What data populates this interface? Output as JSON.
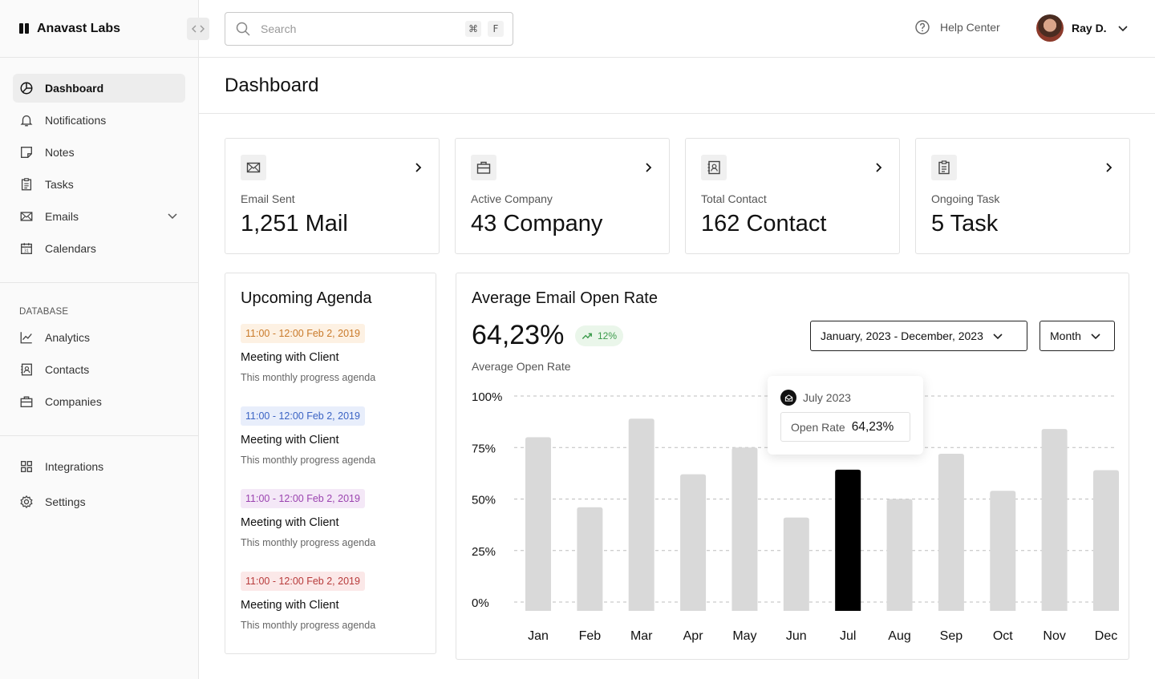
{
  "brand": {
    "name": "Anavast Labs"
  },
  "nav": {
    "main": [
      {
        "label": "Dashboard",
        "icon": "pie-chart-icon",
        "active": true
      },
      {
        "label": "Notifications",
        "icon": "bell-icon"
      },
      {
        "label": "Notes",
        "icon": "note-icon"
      },
      {
        "label": "Tasks",
        "icon": "clipboard-icon"
      },
      {
        "label": "Emails",
        "icon": "mail-icon"
      },
      {
        "label": "Calendars",
        "icon": "calendar-icon"
      }
    ],
    "database_title": "DATABASE",
    "database": [
      {
        "label": "Analytics",
        "icon": "line-chart-icon"
      },
      {
        "label": "Contacts",
        "icon": "contacts-icon"
      },
      {
        "label": "Companies",
        "icon": "briefcase-icon"
      }
    ],
    "bottom": [
      {
        "label": "Integrations",
        "icon": "grid-icon"
      },
      {
        "label": "Settings",
        "icon": "gear-icon"
      }
    ]
  },
  "search": {
    "placeholder": "Search",
    "shortcut_mod": "⌘",
    "shortcut_key": "F"
  },
  "header": {
    "help_label": "Help Center",
    "user_name": "Ray D."
  },
  "page": {
    "title": "Dashboard"
  },
  "stats": [
    {
      "label": "Email Sent",
      "value": "1,251 Mail",
      "icon": "mail-icon"
    },
    {
      "label": "Active Company",
      "value": "43 Company",
      "icon": "briefcase-icon"
    },
    {
      "label": "Total Contact",
      "value": "162 Contact",
      "icon": "contacts-icon"
    },
    {
      "label": "Ongoing Task",
      "value": "5 Task",
      "icon": "clipboard-icon"
    }
  ],
  "agenda": {
    "title": "Upcoming Agenda",
    "items": [
      {
        "time": "11:00 - 12:00 Feb 2, 2019",
        "title": "Meeting with Client",
        "desc": "This monthly progress agenda",
        "color": "#c97a2a",
        "bg": "#fdf1e3"
      },
      {
        "time": "11:00 - 12:00 Feb 2, 2019",
        "title": "Meeting with Client",
        "desc": "This monthly progress agenda",
        "color": "#3b63c4",
        "bg": "#e8eefb"
      },
      {
        "time": "11:00 - 12:00 Feb 2, 2019",
        "title": "Meeting with Client",
        "desc": "This monthly progress agenda",
        "color": "#9b43b0",
        "bg": "#f4e8f7"
      },
      {
        "time": "11:00 - 12:00 Feb 2, 2019",
        "title": "Meeting with Client",
        "desc": "This monthly progress agenda",
        "color": "#b73a3a",
        "bg": "#fbe8e8"
      }
    ]
  },
  "open_rate": {
    "title": "Average Email Open Rate",
    "value": "64,23%",
    "delta": "12%",
    "subtitle": "Average Open Rate",
    "date_range": "January, 2023 - December, 2023",
    "period": "Month",
    "tooltip": {
      "month": "July 2023",
      "label": "Open Rate",
      "value": "64,23%"
    }
  },
  "chart_data": {
    "type": "bar",
    "categories": [
      "Jan",
      "Feb",
      "Mar",
      "Apr",
      "May",
      "Jun",
      "Jul",
      "Aug",
      "Sep",
      "Oct",
      "Nov",
      "Dec"
    ],
    "values": [
      80,
      46,
      89,
      62,
      75,
      41,
      64.23,
      50,
      72,
      54,
      84,
      64
    ],
    "highlight_index": 6,
    "ylim": [
      0,
      100
    ],
    "yticks": [
      "100%",
      "75%",
      "50%",
      "25%",
      "0%"
    ],
    "grid": true,
    "bar_color": "#d9d9d9",
    "highlight_color": "#000000"
  }
}
